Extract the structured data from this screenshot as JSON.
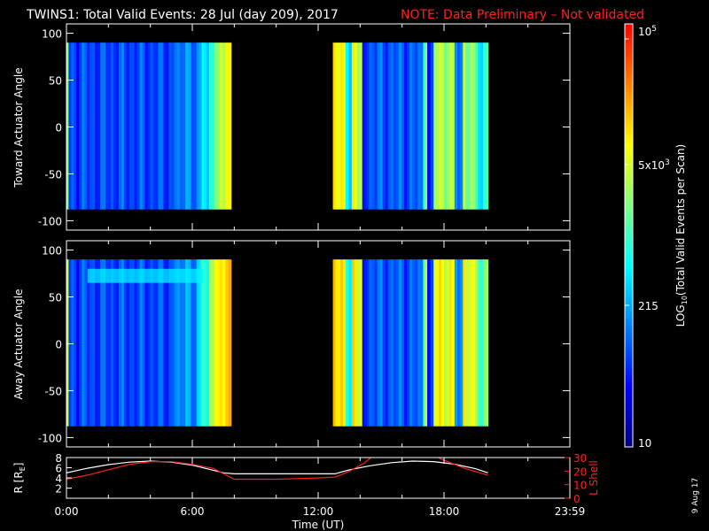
{
  "header": {
    "title": "TWINS1: Total Valid Events: 28 Jul (day 209), 2017",
    "note": "NOTE: Data Preliminary – Not validated"
  },
  "colorbar": {
    "label_prefix": "LOG",
    "label_subscript": "10",
    "label_suffix": "(Total Valid  Events per Scan)",
    "top_label_base": "10",
    "top_label_exp": "5",
    "mid_label_base": "5x10",
    "mid_label_exp": "3",
    "low_label": "215",
    "bottom_label": "10",
    "scale": "log",
    "range": [
      10,
      100000
    ],
    "colors": [
      "#000080",
      "#0000ff",
      "#0080ff",
      "#00ffff",
      "#80ff80",
      "#ffff00",
      "#ff8000",
      "#ff0000"
    ]
  },
  "date_stamp": "9 Aug 17",
  "chart_data": [
    {
      "type": "heatmap",
      "ylabel": "Toward Actuator Angle",
      "ylim": [
        -110,
        110
      ],
      "yticks": [
        "100",
        "50",
        "0",
        "-50",
        "-100"
      ],
      "coverage_hours": [
        [
          0,
          7.85
        ],
        [
          12.7,
          20.1
        ]
      ],
      "angle_range": [
        -88,
        90
      ],
      "profile_note": "mostly low counts (blue), higher counts (green/yellow) at block edges and in bands",
      "bands": [
        {
          "x": [
            0.0,
            0.1
          ],
          "level": 0.55
        },
        {
          "x": [
            0.1,
            5.0
          ],
          "level": 0.22
        },
        {
          "x": [
            5.0,
            6.2
          ],
          "level": 0.28
        },
        {
          "x": [
            6.2,
            6.8
          ],
          "level": 0.38
        },
        {
          "x": [
            6.8,
            7.3
          ],
          "level": 0.52
        },
        {
          "x": [
            7.3,
            7.85
          ],
          "level": 0.66
        },
        {
          "x": [
            12.7,
            13.3
          ],
          "level": 0.7
        },
        {
          "x": [
            13.3,
            13.6
          ],
          "level": 0.35
        },
        {
          "x": [
            13.6,
            14.1
          ],
          "level": 0.68
        },
        {
          "x": [
            14.1,
            14.3
          ],
          "level": 0.15
        },
        {
          "x": [
            14.3,
            17.0
          ],
          "level": 0.24
        },
        {
          "x": [
            17.0,
            17.2
          ],
          "level": 0.55
        },
        {
          "x": [
            17.2,
            17.5
          ],
          "level": 0.2
        },
        {
          "x": [
            17.5,
            18.5
          ],
          "level": 0.62
        },
        {
          "x": [
            18.5,
            18.9
          ],
          "level": 0.28
        },
        {
          "x": [
            18.9,
            19.5
          ],
          "level": 0.6
        },
        {
          "x": [
            19.5,
            20.1
          ],
          "level": 0.45
        }
      ]
    },
    {
      "type": "heatmap",
      "ylabel": "Away Actuator Angle",
      "ylim": [
        -110,
        110
      ],
      "yticks": [
        "100",
        "50",
        "0",
        "-50",
        "-100"
      ],
      "coverage_hours": [
        [
          0,
          7.85
        ],
        [
          12.7,
          20.1
        ]
      ],
      "angle_range": [
        -88,
        90
      ],
      "profile_note": "low counts in middle of blocks, yellow at edges; a bright stripe near +70 deg from 1h to 6.5h",
      "bright_stripe": {
        "x": [
          1.0,
          6.5
        ],
        "y": [
          65,
          80
        ],
        "level": 0.42
      },
      "bands": [
        {
          "x": [
            0.0,
            0.1
          ],
          "level": 0.62
        },
        {
          "x": [
            0.1,
            5.0
          ],
          "level": 0.22
        },
        {
          "x": [
            5.0,
            6.2
          ],
          "level": 0.3
        },
        {
          "x": [
            6.2,
            6.8
          ],
          "level": 0.45
        },
        {
          "x": [
            6.8,
            7.3
          ],
          "level": 0.66
        },
        {
          "x": [
            7.3,
            7.85
          ],
          "level": 0.74
        },
        {
          "x": [
            12.7,
            13.3
          ],
          "level": 0.74
        },
        {
          "x": [
            13.3,
            13.6
          ],
          "level": 0.4
        },
        {
          "x": [
            13.6,
            14.1
          ],
          "level": 0.72
        },
        {
          "x": [
            14.1,
            14.3
          ],
          "level": 0.15
        },
        {
          "x": [
            14.3,
            17.0
          ],
          "level": 0.24
        },
        {
          "x": [
            17.0,
            17.2
          ],
          "level": 0.6
        },
        {
          "x": [
            17.2,
            17.5
          ],
          "level": 0.2
        },
        {
          "x": [
            17.5,
            18.5
          ],
          "level": 0.7
        },
        {
          "x": [
            18.5,
            18.9
          ],
          "level": 0.3
        },
        {
          "x": [
            18.9,
            19.5
          ],
          "level": 0.7
        },
        {
          "x": [
            19.5,
            20.1
          ],
          "level": 0.55
        }
      ]
    },
    {
      "type": "line",
      "xlabel": "Time (UT)",
      "xticks": [
        "0:00",
        "6:00",
        "12:00",
        "18:00",
        "23:59"
      ],
      "xtick_hours": [
        0,
        6,
        12,
        18,
        24
      ],
      "xlim": [
        0,
        24
      ],
      "ylabel_left_prefix": "R [R",
      "ylabel_left_sub": "E",
      "ylabel_left_suffix": "]",
      "ylim_left": [
        0,
        8
      ],
      "yticks_left": [
        "2",
        "4",
        "6",
        "8"
      ],
      "ylabel_right": "L Shell",
      "ylim_right": [
        0,
        30
      ],
      "yticks_right": [
        "0",
        "10",
        "20",
        "30"
      ],
      "series": [
        {
          "axis": "left",
          "color": "#ffffff",
          "x": [
            0,
            1,
            2,
            3,
            4,
            5,
            6,
            7,
            7.5,
            8,
            9,
            10,
            11,
            12,
            12.8,
            13.5,
            14.5,
            15.5,
            16.5,
            17.5,
            18.5,
            19.5,
            20.1
          ],
          "y": [
            5.0,
            5.9,
            6.6,
            7.1,
            7.3,
            7.1,
            6.5,
            5.5,
            5.0,
            4.8,
            4.8,
            4.8,
            4.8,
            4.8,
            4.8,
            5.6,
            6.4,
            7.0,
            7.3,
            7.2,
            6.7,
            5.8,
            5.0
          ]
        },
        {
          "axis": "right",
          "color": "#ff2020",
          "x": [
            0,
            1,
            2,
            3,
            4,
            5,
            6,
            7,
            7.5,
            8,
            9,
            10,
            11,
            12,
            12.8,
            13.5,
            14.2,
            14.6,
            17.6,
            18.0,
            19.0,
            20.1
          ],
          "y": [
            14,
            17,
            21,
            25,
            27,
            27,
            25,
            22,
            18,
            14,
            14,
            14,
            14.5,
            15,
            15.5,
            20,
            26,
            31,
            31,
            28,
            22,
            17
          ]
        }
      ]
    }
  ]
}
